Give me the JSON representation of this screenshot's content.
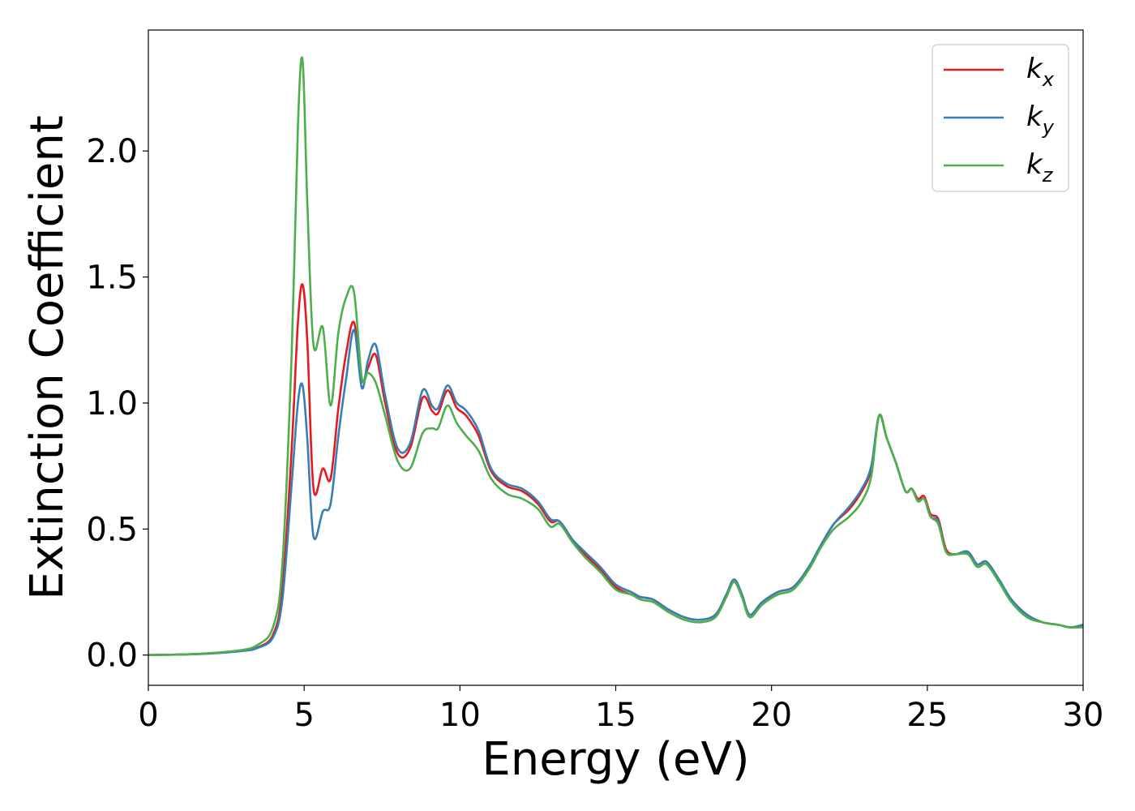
{
  "chart_data": {
    "type": "line",
    "xlabel": "Energy (eV)",
    "ylabel": "Extinction Coefficient",
    "xlim": [
      0,
      30
    ],
    "ylim": [
      -0.12,
      2.48
    ],
    "x_ticks": [
      "0",
      "5",
      "10",
      "15",
      "20",
      "25",
      "30"
    ],
    "y_ticks": [
      "0.0",
      "0.5",
      "1.0",
      "1.5",
      "2.0"
    ],
    "grid": false,
    "legend_position": "top-right",
    "x": [
      0,
      1,
      2,
      3,
      3.5,
      4,
      4.3,
      4.6,
      4.8,
      4.95,
      5.1,
      5.3,
      5.6,
      5.85,
      6.1,
      6.35,
      6.6,
      6.85,
      7.05,
      7.3,
      7.6,
      8.0,
      8.4,
      8.8,
      9.1,
      9.3,
      9.6,
      9.9,
      10.2,
      10.6,
      11.0,
      11.5,
      12.0,
      12.5,
      12.9,
      13.2,
      13.6,
      14.0,
      14.5,
      15.0,
      15.5,
      15.8,
      16.2,
      16.7,
      17.2,
      17.7,
      18.2,
      18.55,
      18.8,
      19.05,
      19.3,
      19.7,
      20.2,
      20.7,
      21.2,
      21.6,
      22.0,
      22.5,
      22.9,
      23.2,
      23.45,
      23.7,
      24.0,
      24.3,
      24.5,
      24.7,
      24.9,
      25.1,
      25.35,
      25.6,
      25.9,
      26.3,
      26.6,
      26.9,
      27.3,
      27.7,
      28.2,
      28.7,
      29.2,
      29.6,
      30.0
    ],
    "series": [
      {
        "name": "k",
        "subscript": "x",
        "color": "#e41a1c",
        "values": [
          0.0,
          0.002,
          0.007,
          0.017,
          0.03,
          0.08,
          0.26,
          0.82,
          1.32,
          1.47,
          1.25,
          0.66,
          0.74,
          0.7,
          0.98,
          1.2,
          1.32,
          1.09,
          1.14,
          1.19,
          1.0,
          0.8,
          0.82,
          1.02,
          0.97,
          0.96,
          1.05,
          0.98,
          0.95,
          0.87,
          0.73,
          0.67,
          0.65,
          0.6,
          0.53,
          0.53,
          0.46,
          0.4,
          0.34,
          0.27,
          0.24,
          0.23,
          0.22,
          0.18,
          0.15,
          0.14,
          0.16,
          0.24,
          0.3,
          0.24,
          0.16,
          0.21,
          0.25,
          0.27,
          0.35,
          0.44,
          0.52,
          0.58,
          0.65,
          0.74,
          0.95,
          0.86,
          0.76,
          0.65,
          0.66,
          0.62,
          0.63,
          0.56,
          0.54,
          0.42,
          0.4,
          0.41,
          0.36,
          0.37,
          0.3,
          0.22,
          0.16,
          0.13,
          0.12,
          0.11,
          0.12
        ]
      },
      {
        "name": "k",
        "subscript": "y",
        "color": "#377eb8",
        "values": [
          0.0,
          0.002,
          0.006,
          0.016,
          0.028,
          0.07,
          0.22,
          0.68,
          1.0,
          1.07,
          0.86,
          0.47,
          0.57,
          0.6,
          0.87,
          1.1,
          1.29,
          1.06,
          1.17,
          1.23,
          1.03,
          0.82,
          0.84,
          1.05,
          0.99,
          0.98,
          1.07,
          1.0,
          0.97,
          0.89,
          0.74,
          0.68,
          0.66,
          0.61,
          0.54,
          0.53,
          0.46,
          0.41,
          0.35,
          0.28,
          0.25,
          0.23,
          0.22,
          0.18,
          0.15,
          0.14,
          0.16,
          0.24,
          0.3,
          0.24,
          0.16,
          0.21,
          0.25,
          0.27,
          0.35,
          0.44,
          0.52,
          0.59,
          0.66,
          0.75,
          0.95,
          0.86,
          0.76,
          0.65,
          0.66,
          0.61,
          0.62,
          0.55,
          0.53,
          0.41,
          0.4,
          0.41,
          0.36,
          0.37,
          0.3,
          0.22,
          0.16,
          0.13,
          0.12,
          0.11,
          0.12
        ]
      },
      {
        "name": "k",
        "subscript": "z",
        "color": "#4daf4a",
        "values": [
          0.0,
          0.002,
          0.008,
          0.02,
          0.04,
          0.11,
          0.36,
          1.2,
          2.1,
          2.36,
          1.8,
          1.23,
          1.3,
          0.99,
          1.28,
          1.42,
          1.44,
          1.1,
          1.12,
          1.08,
          0.95,
          0.77,
          0.74,
          0.88,
          0.9,
          0.9,
          0.99,
          0.92,
          0.87,
          0.81,
          0.7,
          0.64,
          0.62,
          0.58,
          0.51,
          0.52,
          0.45,
          0.39,
          0.33,
          0.26,
          0.24,
          0.22,
          0.21,
          0.17,
          0.14,
          0.13,
          0.15,
          0.23,
          0.29,
          0.23,
          0.15,
          0.2,
          0.24,
          0.26,
          0.34,
          0.43,
          0.5,
          0.55,
          0.61,
          0.71,
          0.95,
          0.86,
          0.76,
          0.65,
          0.66,
          0.61,
          0.62,
          0.55,
          0.52,
          0.41,
          0.4,
          0.4,
          0.35,
          0.36,
          0.29,
          0.21,
          0.15,
          0.13,
          0.12,
          0.11,
          0.11
        ]
      }
    ]
  }
}
